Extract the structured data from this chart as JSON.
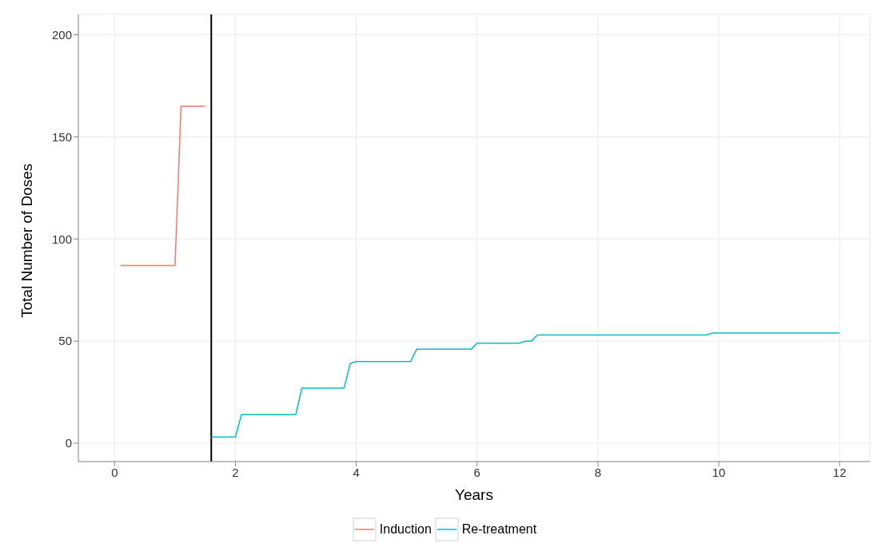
{
  "chart_data": {
    "type": "line",
    "xlabel": "Years",
    "ylabel": "Total Number of Doses",
    "xlim": [
      -0.6,
      12.5
    ],
    "ylim": [
      -9,
      210
    ],
    "xticks": [
      0,
      2,
      4,
      6,
      8,
      10,
      12
    ],
    "yticks": [
      0,
      50,
      100,
      150,
      200
    ],
    "grid": true,
    "legend": "bottom",
    "marker": "none",
    "line_style": "solid",
    "series": [
      {
        "name": "Induction",
        "color": "#f8766d",
        "x": [
          0.1,
          1.0,
          1.1,
          1.5
        ],
        "values": [
          87,
          87,
          165,
          165
        ]
      },
      {
        "name": "Re-treatment",
        "color": "#00bfc4",
        "x": [
          1.6,
          2.0,
          2.1,
          3.0,
          3.1,
          3.8,
          3.9,
          4.0,
          4.9,
          5.0,
          5.9,
          6.0,
          6.7,
          6.8,
          6.9,
          7.0,
          9.8,
          9.9,
          12.0
        ],
        "values": [
          3,
          3,
          14,
          14,
          27,
          27,
          39,
          40,
          40,
          46,
          46,
          49,
          49,
          50,
          50,
          53,
          53,
          54,
          54
        ]
      }
    ],
    "ref_lines": [
      {
        "axis": "x",
        "value": 1.6,
        "color": "#000000",
        "line_style": "solid"
      }
    ]
  }
}
